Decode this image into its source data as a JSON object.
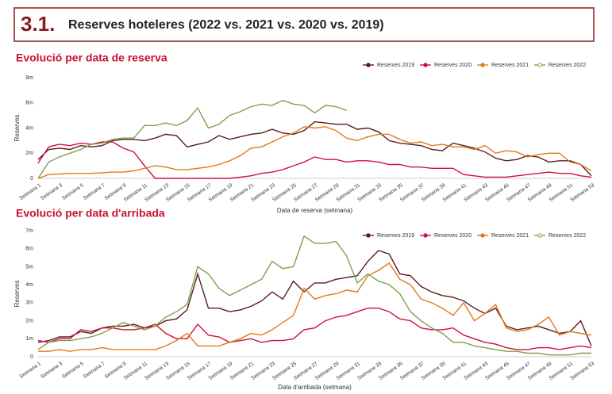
{
  "header": {
    "number": "3.1.",
    "title": "Reserves hoteleres (2022 vs. 2021 vs. 2020 vs. 2019)"
  },
  "chart_data": [
    {
      "type": "line",
      "title": "Evolució per data de reserva",
      "y_label": "Reserves",
      "x_label": "Data de reserva (setmana)",
      "categories": [
        "Setmana 1",
        null,
        "Setmana 3",
        null,
        "Setmana 5",
        null,
        "Setmana 7",
        null,
        "Setmana 9",
        null,
        "Setmana 11",
        null,
        "Setmana 13",
        null,
        "Setmana 15",
        null,
        "Setmana 17",
        null,
        "Setmana 19",
        null,
        "Setmana 21",
        null,
        "Setmana 23",
        null,
        "Setmana 25",
        null,
        "Setmana 27",
        null,
        "Setmana 29",
        null,
        "Setmana 31",
        null,
        "Setmana 33",
        null,
        "Setmana 35",
        null,
        "Setmana 37",
        null,
        "Setmana 39",
        null,
        "Setmana 41",
        null,
        "Setmana 43",
        null,
        "Setmana 45",
        null,
        "Setmana 47",
        null,
        "Setmana 49",
        null,
        "Setmana 51",
        null,
        "Setmana 53"
      ],
      "ylim": [
        0,
        8
      ],
      "yticks": [
        0,
        {
          "value": 2,
          "label": "2m"
        },
        {
          "value": 4,
          "label": "4m"
        },
        {
          "value": 6,
          "label": "6m"
        },
        {
          "value": 8,
          "label": "8m"
        }
      ],
      "grid": false,
      "legend": "top-right",
      "series": [
        {
          "name": "Reserves 2019",
          "color": "#5b1c1c",
          "values": [
            1.5,
            2.3,
            2.4,
            2.3,
            2.6,
            2.5,
            2.6,
            3.0,
            3.1,
            3.1,
            3.0,
            3.2,
            3.5,
            3.4,
            2.5,
            2.7,
            2.9,
            3.4,
            3.1,
            3.3,
            3.5,
            3.6,
            3.9,
            3.6,
            3.5,
            3.8,
            4.5,
            4.4,
            4.3,
            4.3,
            3.9,
            4.0,
            3.7,
            3.0,
            2.8,
            2.7,
            2.6,
            2.3,
            2.2,
            2.8,
            2.6,
            2.4,
            2.1,
            1.6,
            1.4,
            1.5,
            1.8,
            1.7,
            1.3,
            1.4,
            1.4,
            1.1,
            0.2
          ]
        },
        {
          "name": "Reserves 2020",
          "color": "#d0103a",
          "values": [
            1.2,
            2.5,
            2.7,
            2.6,
            2.8,
            2.7,
            2.9,
            2.9,
            2.4,
            2.1,
            1.0,
            0.0,
            0.0,
            0.0,
            0.0,
            0.0,
            0.0,
            0.0,
            0.0,
            0.1,
            0.2,
            0.4,
            0.5,
            0.7,
            1.0,
            1.3,
            1.7,
            1.5,
            1.5,
            1.3,
            1.4,
            1.4,
            1.3,
            1.1,
            1.1,
            0.9,
            0.9,
            0.8,
            0.8,
            0.8,
            0.3,
            0.2,
            0.1,
            0.1,
            0.1,
            0.2,
            0.3,
            0.4,
            0.5,
            0.4,
            0.4,
            0.2,
            0.1
          ]
        },
        {
          "name": "Reserves 2021",
          "color": "#e07b1a",
          "values": [
            0.0,
            0.3,
            0.35,
            0.4,
            0.4,
            0.4,
            0.45,
            0.5,
            0.5,
            0.6,
            0.8,
            1.0,
            0.9,
            0.7,
            0.7,
            0.8,
            0.9,
            1.1,
            1.4,
            1.8,
            2.4,
            2.5,
            2.9,
            3.3,
            3.6,
            4.1,
            4.0,
            4.1,
            3.8,
            3.2,
            3.0,
            3.3,
            3.5,
            3.5,
            3.1,
            2.8,
            2.9,
            2.6,
            2.7,
            2.5,
            2.5,
            2.3,
            2.6,
            2.0,
            2.2,
            2.1,
            1.7,
            1.9,
            2.0,
            2.0,
            1.3,
            1.1,
            0.6
          ]
        },
        {
          "name": "Reserves 2022",
          "color": "#7fa04a",
          "values": [
            0.0,
            1.3,
            1.7,
            2.0,
            2.3,
            2.7,
            2.8,
            3.1,
            3.2,
            3.2,
            4.2,
            4.2,
            4.4,
            4.2,
            4.6,
            5.6,
            4.0,
            4.3,
            5.0,
            5.3,
            5.7,
            5.9,
            5.8,
            6.2,
            5.9,
            5.8,
            5.2,
            5.8,
            5.7,
            5.4,
            null,
            null,
            null,
            null,
            null,
            null,
            null,
            null,
            null,
            null,
            null,
            null,
            null,
            null,
            null,
            null,
            null,
            null,
            null,
            null,
            null,
            null,
            null
          ]
        }
      ]
    },
    {
      "type": "line",
      "title": "Evolució per data d'arribada",
      "y_label": "Reserves",
      "x_label": "Data d'arribada (setmana)",
      "categories": [
        "Setmana 1",
        null,
        "Setmana 3",
        null,
        "Setmana 5",
        null,
        "Setmana 7",
        null,
        "Setmana 9",
        null,
        "Setmana 11",
        null,
        "Setmana 13",
        null,
        "Setmana 15",
        null,
        "Setmana 17",
        null,
        "Setmana 19",
        null,
        "Setmana 21",
        null,
        "Setmana 23",
        null,
        "Setmana 25",
        null,
        "Setmana 27",
        null,
        "Setmana 29",
        null,
        "Setmana 31",
        null,
        "Setmana 33",
        null,
        "Setmana 35",
        null,
        "Setmana 37",
        null,
        "Setmana 39",
        null,
        "Setmana 41",
        null,
        "Setmana 43",
        null,
        "Setmana 45",
        null,
        "Setmana 47",
        null,
        "Setmana 49",
        null,
        "Setmana 51",
        null,
        "Setmana 53"
      ],
      "ylim": [
        0,
        7
      ],
      "yticks": [
        0,
        {
          "value": 1,
          "label": "1m"
        },
        {
          "value": 2,
          "label": "2m"
        },
        {
          "value": 3,
          "label": "3m"
        },
        {
          "value": 4,
          "label": "4m"
        },
        {
          "value": 5,
          "label": "5m"
        },
        {
          "value": 6,
          "label": "6m"
        },
        {
          "value": 7,
          "label": "7m"
        }
      ],
      "grid": false,
      "legend": "top-right",
      "series": [
        {
          "name": "Reserves 2019",
          "color": "#5b1c1c",
          "values": [
            0.8,
            0.9,
            1.1,
            1.1,
            1.4,
            1.3,
            1.6,
            1.7,
            1.7,
            1.8,
            1.6,
            1.7,
            2.0,
            2.1,
            2.6,
            4.6,
            2.7,
            2.7,
            2.5,
            2.6,
            2.8,
            3.1,
            3.6,
            3.2,
            4.2,
            3.6,
            4.1,
            4.1,
            4.3,
            4.4,
            4.5,
            5.3,
            5.9,
            5.7,
            4.6,
            4.5,
            3.9,
            3.6,
            3.4,
            3.3,
            3.1,
            2.7,
            2.4,
            2.7,
            1.7,
            1.5,
            1.6,
            1.7,
            1.5,
            1.3,
            1.4,
            2.0,
            0.6
          ]
        },
        {
          "name": "Reserves 2020",
          "color": "#d0103a",
          "values": [
            0.9,
            0.8,
            1.0,
            1.0,
            1.5,
            1.4,
            1.6,
            1.6,
            1.5,
            1.5,
            1.6,
            1.8,
            1.3,
            1.0,
            1.0,
            1.8,
            1.2,
            1.1,
            0.8,
            0.9,
            1.0,
            0.8,
            0.9,
            0.9,
            1.0,
            1.5,
            1.6,
            2.0,
            2.2,
            2.3,
            2.5,
            2.7,
            2.7,
            2.5,
            2.1,
            2.0,
            1.6,
            1.5,
            1.5,
            1.6,
            1.2,
            1.0,
            0.8,
            0.7,
            0.5,
            0.4,
            0.4,
            0.5,
            0.5,
            0.4,
            0.5,
            0.6,
            0.5
          ]
        },
        {
          "name": "Reserves 2021",
          "color": "#e07b1a",
          "values": [
            0.3,
            0.3,
            0.4,
            0.3,
            0.4,
            0.4,
            0.5,
            0.4,
            0.4,
            0.4,
            0.4,
            0.4,
            0.6,
            0.9,
            1.3,
            0.6,
            0.6,
            0.6,
            0.8,
            1.0,
            1.3,
            1.2,
            1.5,
            1.9,
            2.3,
            3.8,
            3.2,
            3.4,
            3.5,
            3.7,
            3.6,
            4.5,
            4.8,
            5.2,
            4.3,
            4.0,
            3.2,
            3.0,
            2.7,
            2.3,
            3.0,
            2.0,
            2.4,
            2.9,
            1.6,
            1.4,
            1.5,
            1.8,
            2.2,
            1.2,
            1.4,
            1.3,
            1.2
          ]
        },
        {
          "name": "Reserves 2022",
          "color": "#7fa04a",
          "values": [
            0.4,
            0.8,
            0.9,
            0.9,
            1.0,
            1.1,
            1.3,
            1.6,
            1.9,
            1.7,
            1.5,
            1.7,
            2.2,
            2.5,
            2.9,
            5.0,
            4.6,
            3.8,
            3.4,
            3.7,
            4.0,
            4.3,
            5.3,
            4.9,
            5.0,
            6.7,
            6.3,
            6.3,
            6.4,
            5.6,
            4.1,
            4.6,
            4.2,
            4.0,
            3.5,
            2.5,
            2.0,
            1.6,
            1.3,
            0.8,
            0.8,
            0.6,
            0.5,
            0.4,
            0.3,
            0.3,
            0.2,
            0.2,
            0.1,
            0.1,
            0.1,
            0.2,
            0.2
          ]
        }
      ]
    }
  ]
}
